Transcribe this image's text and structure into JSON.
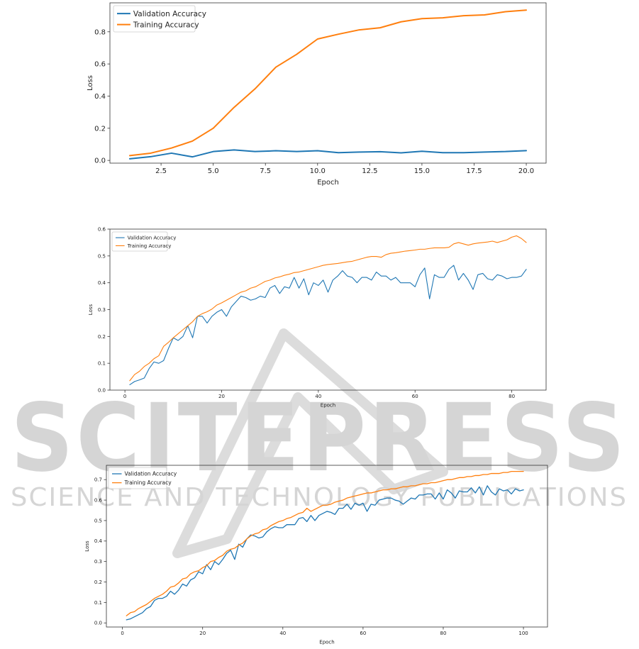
{
  "watermark": {
    "text_main": "SCITEPRESS",
    "text_sub": "SCIENCE AND TECHNOLOGY PUBLICATIONS",
    "color": "#d2d2d2"
  },
  "chart_data": [
    {
      "type": "line",
      "title": "",
      "xlabel": "Epoch",
      "ylabel": "Loss",
      "xlim": [
        0.05,
        20.95
      ],
      "ylim": [
        -0.017,
        0.98
      ],
      "xticks": [
        2.5,
        5.0,
        7.5,
        10.0,
        12.5,
        15.0,
        17.5,
        20.0
      ],
      "xtick_labels": [
        "2.5",
        "5.0",
        "7.5",
        "10.0",
        "12.5",
        "15.0",
        "17.5",
        "20.0"
      ],
      "yticks": [
        0.0,
        0.2,
        0.4,
        0.6,
        0.8
      ],
      "ytick_labels": [
        "0.0",
        "0.2",
        "0.4",
        "0.6",
        "0.8"
      ],
      "legend": "top-left",
      "x": [
        1,
        2,
        3,
        4,
        5,
        6,
        7,
        8,
        9,
        10,
        11,
        12,
        13,
        14,
        15,
        16,
        17,
        18,
        19,
        20
      ],
      "series": [
        {
          "name": "Validation Accuracy",
          "color": "#1f77b4",
          "values": [
            0.01,
            0.023,
            0.045,
            0.022,
            0.055,
            0.065,
            0.055,
            0.06,
            0.055,
            0.06,
            0.048,
            0.052,
            0.054,
            0.047,
            0.057,
            0.048,
            0.048,
            0.052,
            0.055,
            0.061
          ]
        },
        {
          "name": "Training Accuracy",
          "color": "#ff7f0e",
          "values": [
            0.03,
            0.045,
            0.077,
            0.12,
            0.2,
            0.33,
            0.445,
            0.58,
            0.66,
            0.755,
            0.785,
            0.812,
            0.825,
            0.862,
            0.882,
            0.887,
            0.9,
            0.905,
            0.925,
            0.935
          ]
        }
      ]
    },
    {
      "type": "line",
      "title": "",
      "xlabel": "Epoch",
      "ylabel": "Loss",
      "xlim": [
        -3.1,
        87.1
      ],
      "ylim": [
        0.0,
        0.6
      ],
      "xticks": [
        0,
        20,
        40,
        60,
        80
      ],
      "xtick_labels": [
        "0",
        "20",
        "40",
        "60",
        "80"
      ],
      "yticks": [
        0.0,
        0.1,
        0.2,
        0.3,
        0.4,
        0.5,
        0.6
      ],
      "ytick_labels": [
        "0.0",
        "0.1",
        "0.2",
        "0.3",
        "0.4",
        "0.5",
        "0.6"
      ],
      "legend": "top-left",
      "x": [
        1,
        2,
        3,
        4,
        5,
        6,
        7,
        8,
        9,
        10,
        11,
        12,
        13,
        14,
        15,
        16,
        17,
        18,
        19,
        20,
        21,
        22,
        23,
        24,
        25,
        26,
        27,
        28,
        29,
        30,
        31,
        32,
        33,
        34,
        35,
        36,
        37,
        38,
        39,
        40,
        41,
        42,
        43,
        44,
        45,
        46,
        47,
        48,
        49,
        50,
        51,
        52,
        53,
        54,
        55,
        56,
        57,
        58,
        59,
        60,
        61,
        62,
        63,
        64,
        65,
        66,
        67,
        68,
        69,
        70,
        71,
        72,
        73,
        74,
        75,
        76,
        77,
        78,
        79,
        80,
        81,
        82,
        83
      ],
      "series": [
        {
          "name": "Validation Accuracy",
          "color": "#1f77b4",
          "values": [
            0.02,
            0.032,
            0.038,
            0.045,
            0.08,
            0.105,
            0.1,
            0.11,
            0.155,
            0.195,
            0.185,
            0.2,
            0.24,
            0.195,
            0.275,
            0.275,
            0.25,
            0.275,
            0.29,
            0.3,
            0.275,
            0.31,
            0.33,
            0.35,
            0.345,
            0.335,
            0.34,
            0.35,
            0.345,
            0.38,
            0.39,
            0.36,
            0.385,
            0.38,
            0.42,
            0.38,
            0.415,
            0.355,
            0.4,
            0.39,
            0.41,
            0.365,
            0.41,
            0.425,
            0.445,
            0.425,
            0.42,
            0.4,
            0.42,
            0.42,
            0.41,
            0.44,
            0.425,
            0.425,
            0.41,
            0.42,
            0.4,
            0.4,
            0.4,
            0.385,
            0.43,
            0.455,
            0.34,
            0.43,
            0.42,
            0.42,
            0.45,
            0.465,
            0.41,
            0.435,
            0.41,
            0.375,
            0.43,
            0.435,
            0.415,
            0.41,
            0.43,
            0.425,
            0.415,
            0.42,
            0.42,
            0.425,
            0.45
          ]
        },
        {
          "name": "Training Accuracy",
          "color": "#ff7f0e",
          "values": [
            0.035,
            0.058,
            0.07,
            0.088,
            0.1,
            0.117,
            0.128,
            0.163,
            0.178,
            0.195,
            0.21,
            0.225,
            0.24,
            0.255,
            0.275,
            0.285,
            0.292,
            0.302,
            0.317,
            0.325,
            0.335,
            0.345,
            0.355,
            0.365,
            0.37,
            0.38,
            0.385,
            0.395,
            0.405,
            0.41,
            0.418,
            0.422,
            0.428,
            0.432,
            0.438,
            0.44,
            0.445,
            0.45,
            0.455,
            0.46,
            0.465,
            0.468,
            0.47,
            0.472,
            0.475,
            0.478,
            0.48,
            0.485,
            0.49,
            0.495,
            0.498,
            0.498,
            0.495,
            0.505,
            0.51,
            0.512,
            0.515,
            0.518,
            0.52,
            0.522,
            0.525,
            0.525,
            0.528,
            0.53,
            0.53,
            0.53,
            0.532,
            0.545,
            0.55,
            0.545,
            0.54,
            0.545,
            0.548,
            0.55,
            0.552,
            0.555,
            0.55,
            0.555,
            0.56,
            0.57,
            0.575,
            0.565,
            0.55
          ]
        }
      ]
    },
    {
      "type": "line",
      "title": "",
      "xlabel": "Epoch",
      "ylabel": "Loss",
      "xlim": [
        -4.0,
        106.0
      ],
      "ylim": [
        -0.02,
        0.77
      ],
      "xticks": [
        0,
        20,
        40,
        60,
        80,
        100
      ],
      "xtick_labels": [
        "0",
        "20",
        "40",
        "60",
        "80",
        "100"
      ],
      "yticks": [
        0.0,
        0.1,
        0.2,
        0.3,
        0.4,
        0.5,
        0.6,
        0.7
      ],
      "ytick_labels": [
        "0.0",
        "0.1",
        "0.2",
        "0.3",
        "0.4",
        "0.5",
        "0.6",
        "0.7"
      ],
      "legend": "top-left",
      "x_start": 1,
      "series": [
        {
          "name": "Validation Accuracy",
          "color": "#1f77b4",
          "values": [
            0.015,
            0.02,
            0.03,
            0.04,
            0.05,
            0.07,
            0.08,
            0.11,
            0.12,
            0.12,
            0.13,
            0.155,
            0.14,
            0.16,
            0.19,
            0.18,
            0.21,
            0.22,
            0.25,
            0.24,
            0.285,
            0.26,
            0.3,
            0.285,
            0.31,
            0.34,
            0.355,
            0.31,
            0.385,
            0.37,
            0.41,
            0.43,
            0.425,
            0.415,
            0.42,
            0.445,
            0.46,
            0.47,
            0.465,
            0.465,
            0.48,
            0.48,
            0.48,
            0.51,
            0.515,
            0.495,
            0.525,
            0.5,
            0.525,
            0.535,
            0.545,
            0.54,
            0.53,
            0.56,
            0.56,
            0.58,
            0.555,
            0.585,
            0.575,
            0.585,
            0.545,
            0.58,
            0.575,
            0.6,
            0.605,
            0.61,
            0.61,
            0.6,
            0.595,
            0.58,
            0.595,
            0.61,
            0.605,
            0.625,
            0.625,
            0.63,
            0.63,
            0.605,
            0.635,
            0.605,
            0.65,
            0.635,
            0.61,
            0.645,
            0.64,
            0.64,
            0.66,
            0.635,
            0.665,
            0.625,
            0.67,
            0.64,
            0.625,
            0.655,
            0.645,
            0.65,
            0.63,
            0.655,
            0.645,
            0.65
          ]
        },
        {
          "name": "Training Accuracy",
          "color": "#ff7f0e",
          "values": [
            0.035,
            0.05,
            0.055,
            0.07,
            0.08,
            0.09,
            0.105,
            0.12,
            0.13,
            0.14,
            0.155,
            0.175,
            0.18,
            0.195,
            0.215,
            0.22,
            0.24,
            0.25,
            0.255,
            0.27,
            0.28,
            0.3,
            0.305,
            0.32,
            0.33,
            0.35,
            0.36,
            0.365,
            0.38,
            0.39,
            0.41,
            0.425,
            0.435,
            0.44,
            0.455,
            0.46,
            0.475,
            0.485,
            0.495,
            0.5,
            0.51,
            0.515,
            0.525,
            0.535,
            0.54,
            0.56,
            0.545,
            0.555,
            0.565,
            0.575,
            0.575,
            0.58,
            0.59,
            0.595,
            0.6,
            0.61,
            0.615,
            0.62,
            0.625,
            0.63,
            0.635,
            0.635,
            0.64,
            0.645,
            0.65,
            0.65,
            0.655,
            0.655,
            0.66,
            0.665,
            0.665,
            0.67,
            0.67,
            0.675,
            0.68,
            0.68,
            0.685,
            0.685,
            0.69,
            0.695,
            0.7,
            0.7,
            0.705,
            0.71,
            0.71,
            0.715,
            0.715,
            0.72,
            0.72,
            0.725,
            0.725,
            0.73,
            0.73,
            0.73,
            0.735,
            0.735,
            0.74,
            0.74,
            0.74,
            0.74
          ]
        }
      ]
    }
  ]
}
